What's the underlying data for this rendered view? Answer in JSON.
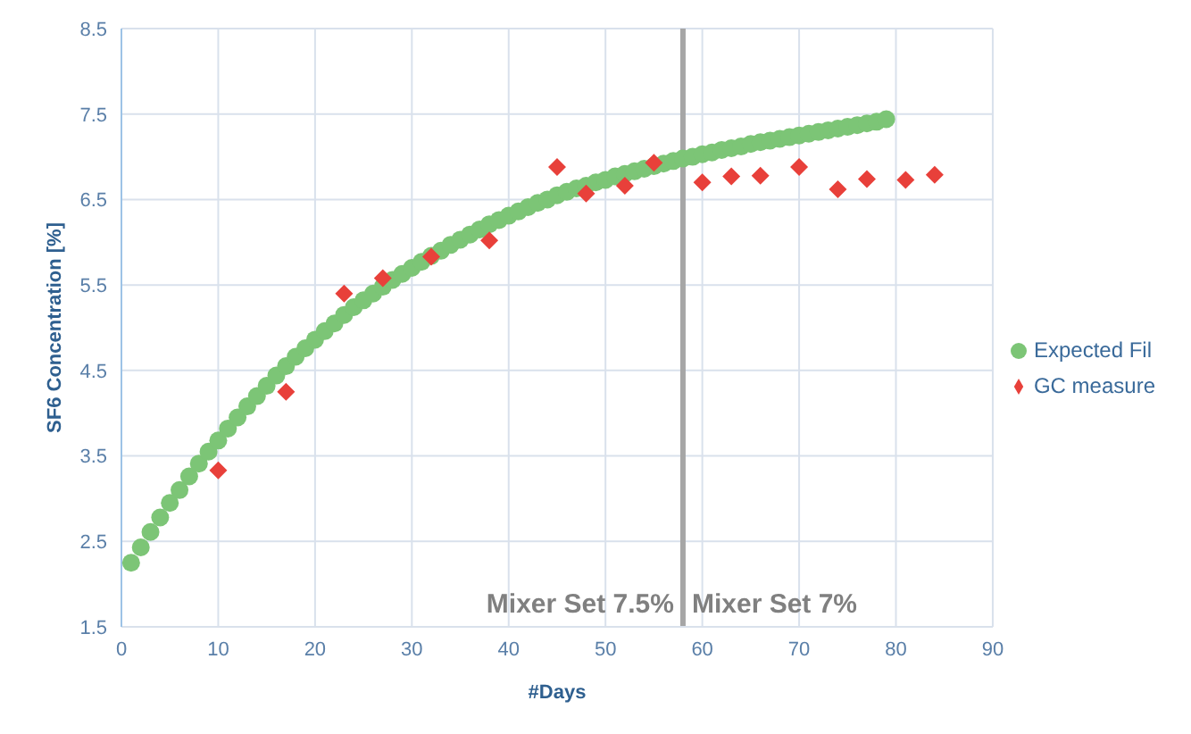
{
  "chart_data": {
    "type": "scatter",
    "xlabel": "#Days",
    "ylabel": "SF6 Concentration [%]",
    "xlim": [
      0,
      90
    ],
    "xticks": [
      0,
      10,
      20,
      30,
      40,
      50,
      60,
      70,
      80,
      90
    ],
    "ylim": [
      1.5,
      8.5
    ],
    "yticks": [
      1.5,
      2.5,
      3.5,
      4.5,
      5.5,
      6.5,
      7.5,
      8.5
    ],
    "grid": true,
    "legend": "right",
    "series": [
      {
        "name": "Expected Fil",
        "color": "#7cc576",
        "marker": "circle",
        "x": [
          1,
          2,
          3,
          4,
          5,
          6,
          7,
          8,
          9,
          10,
          11,
          12,
          13,
          14,
          15,
          16,
          17,
          18,
          19,
          20,
          21,
          22,
          23,
          24,
          25,
          26,
          27,
          28,
          29,
          30,
          31,
          32,
          33,
          34,
          35,
          36,
          37,
          38,
          39,
          40,
          41,
          42,
          43,
          44,
          45,
          46,
          47,
          48,
          49,
          50,
          51,
          52,
          53,
          54,
          55,
          56,
          57,
          58,
          59,
          60,
          61,
          62,
          63,
          64,
          65,
          66,
          67,
          68,
          69,
          70,
          71,
          72,
          73,
          74,
          75,
          76,
          77,
          78,
          79
        ],
        "values": [
          2.25,
          2.43,
          2.61,
          2.78,
          2.95,
          3.1,
          3.26,
          3.41,
          3.55,
          3.68,
          3.82,
          3.95,
          4.08,
          4.2,
          4.32,
          4.44,
          4.55,
          4.66,
          4.76,
          4.86,
          4.96,
          5.05,
          5.15,
          5.24,
          5.32,
          5.4,
          5.48,
          5.56,
          5.63,
          5.7,
          5.77,
          5.84,
          5.9,
          5.97,
          6.03,
          6.09,
          6.15,
          6.21,
          6.26,
          6.31,
          6.36,
          6.41,
          6.46,
          6.5,
          6.55,
          6.59,
          6.63,
          6.66,
          6.7,
          6.73,
          6.77,
          6.8,
          6.83,
          6.86,
          6.89,
          6.92,
          6.95,
          6.98,
          7.0,
          7.03,
          7.05,
          7.08,
          7.1,
          7.12,
          7.15,
          7.17,
          7.19,
          7.21,
          7.23,
          7.25,
          7.27,
          7.29,
          7.31,
          7.33,
          7.35,
          7.37,
          7.39,
          7.41,
          7.44
        ]
      },
      {
        "name": "GC measure",
        "color": "#e8403a",
        "marker": "diamond",
        "x": [
          10,
          17,
          23,
          27,
          32,
          38,
          45,
          48,
          52,
          55,
          60,
          63,
          66,
          70,
          74,
          77,
          81,
          84
        ],
        "values": [
          3.33,
          4.25,
          5.4,
          5.58,
          5.83,
          6.02,
          6.88,
          6.57,
          6.66,
          6.93,
          6.7,
          6.77,
          6.78,
          6.88,
          6.62,
          6.74,
          6.73,
          6.79
        ]
      }
    ],
    "ref_lines": [
      {
        "axis": "x",
        "value": 58,
        "color": "#a6a6a6"
      }
    ],
    "annotations": [
      {
        "text": "Mixer Set 7.5%",
        "x": 58,
        "y": 1.78
      },
      {
        "text": "Mixer Set 7%",
        "x": 58,
        "y": 1.78
      }
    ]
  }
}
